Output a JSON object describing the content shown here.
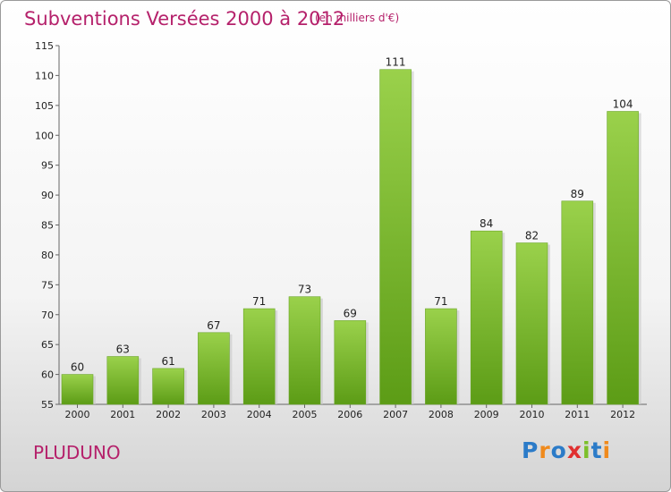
{
  "header": {
    "title": "Subventions Versées 2000 à 2012",
    "subtitle": "(en milliers d'€)"
  },
  "footer": {
    "commune": "PLUDUNO",
    "logo_letters": [
      {
        "char": "P",
        "color": "#2b7bc8"
      },
      {
        "char": "r",
        "color": "#f08a1c"
      },
      {
        "char": "o",
        "color": "#2b7bc8"
      },
      {
        "char": "x",
        "color": "#e03030"
      },
      {
        "char": "i",
        "color": "#7cbf2a"
      },
      {
        "char": "t",
        "color": "#2b7bc8"
      },
      {
        "char": "i",
        "color": "#f08a1c"
      }
    ]
  },
  "chart_data": {
    "type": "bar",
    "title": "Subventions Versées 2000 à 2012",
    "subtitle": "(en milliers d'€)",
    "xlabel": "",
    "ylabel": "",
    "categories": [
      "2000",
      "2001",
      "2002",
      "2003",
      "2004",
      "2005",
      "2006",
      "2007",
      "2008",
      "2009",
      "2010",
      "2011",
      "2012"
    ],
    "values": [
      60,
      63,
      61,
      67,
      71,
      73,
      69,
      111,
      71,
      84,
      82,
      89,
      104
    ],
    "value_labels": [
      "60",
      "63",
      "61",
      "67",
      "71",
      "73",
      "69",
      "111",
      "71",
      "84",
      "82",
      "89",
      "104"
    ],
    "ylim": [
      55,
      115
    ],
    "yticks": [
      "55",
      "60",
      "65",
      "70",
      "75",
      "80",
      "85",
      "90",
      "95",
      "100",
      "105",
      "110",
      "115"
    ],
    "grid": false,
    "bar_color_top": "#9ad14b",
    "bar_color_bottom": "#5c9c16"
  }
}
